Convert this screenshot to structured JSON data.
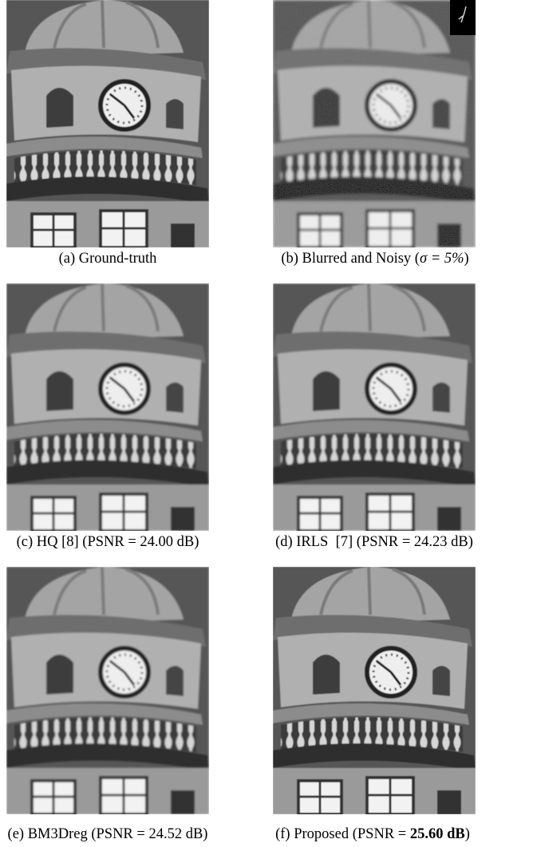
{
  "figure": {
    "panels": [
      {
        "caption_parts": [
          "(a) Ground-truth"
        ]
      },
      {
        "caption_parts": [
          "(b) Blurred and Noisy (",
          "σ = 5%",
          ")"
        ]
      },
      {
        "caption_parts": [
          "(c) HQ [8] (PSNR = 24.00 dB)"
        ]
      },
      {
        "caption_parts": [
          "(d) IRLS  [7] (PSNR = 24.23 dB)"
        ]
      },
      {
        "caption_parts": [
          "(e) BM3Dreg (PSNR = 24.52 dB)"
        ]
      },
      {
        "caption_parts": [
          "(f) Proposed (PSNR = ",
          "25.60 dB",
          ")"
        ]
      }
    ]
  }
}
